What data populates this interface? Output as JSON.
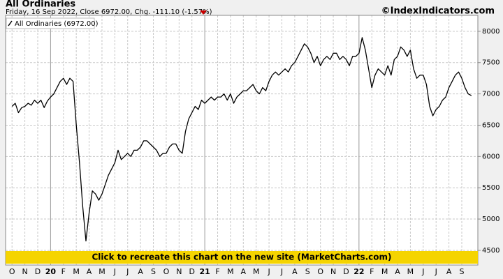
{
  "chart_data": {
    "type": "line",
    "title": "All Ordinaries",
    "subtitle": "Friday, 16 Sep 2022, Close 6972.00, Chg. -111.10 (-1.57%)",
    "credit": "©IndexIndicators.com",
    "banner": "Click to recreate this chart on the new site (MarketCharts.com)",
    "series": [
      {
        "name": "All Ordinaries (6972.00)",
        "color": "#000000",
        "values": [
          6800,
          6850,
          6700,
          6780,
          6800,
          6850,
          6820,
          6900,
          6850,
          6900,
          6780,
          6885,
          6950,
          7000,
          7100,
          7200,
          7250,
          7150,
          7250,
          7200,
          6500,
          5900,
          5200,
          4650,
          5100,
          5450,
          5400,
          5300,
          5400,
          5550,
          5700,
          5800,
          5900,
          6100,
          5950,
          6000,
          6050,
          6000,
          6100,
          6100,
          6150,
          6250,
          6250,
          6200,
          6150,
          6100,
          6000,
          6050,
          6050,
          6150,
          6200,
          6200,
          6100,
          6050,
          6400,
          6600,
          6700,
          6800,
          6750,
          6900,
          6850,
          6900,
          6950,
          6900,
          6950,
          6950,
          7000,
          6900,
          7000,
          6850,
          6950,
          7000,
          7050,
          7050,
          7100,
          7150,
          7050,
          7000,
          7100,
          7050,
          7200,
          7300,
          7350,
          7300,
          7350,
          7400,
          7350,
          7450,
          7500,
          7600,
          7700,
          7800,
          7750,
          7650,
          7500,
          7600,
          7450,
          7550,
          7600,
          7550,
          7650,
          7650,
          7550,
          7600,
          7550,
          7450,
          7600,
          7600,
          7650,
          7900,
          7700,
          7400,
          7100,
          7300,
          7400,
          7350,
          7300,
          7450,
          7300,
          7550,
          7600,
          7750,
          7700,
          7600,
          7700,
          7400,
          7250,
          7300,
          7300,
          7150,
          6800,
          6650,
          6750,
          6800,
          6900,
          6950,
          7100,
          7200,
          7300,
          7350,
          7250,
          7100,
          7000,
          6972
        ]
      }
    ],
    "xlim": [
      -2,
      145
    ],
    "xticks": [
      {
        "value": 0,
        "label": "O"
      },
      {
        "value": 4,
        "label": "N"
      },
      {
        "value": 8,
        "label": "D"
      },
      {
        "value": 12,
        "label": "20"
      },
      {
        "value": 16,
        "label": "F"
      },
      {
        "value": 20,
        "label": "M"
      },
      {
        "value": 24,
        "label": "A"
      },
      {
        "value": 28,
        "label": "M"
      },
      {
        "value": 32,
        "label": "J"
      },
      {
        "value": 36,
        "label": "J"
      },
      {
        "value": 40,
        "label": "A"
      },
      {
        "value": 44,
        "label": "S"
      },
      {
        "value": 48,
        "label": "O"
      },
      {
        "value": 52,
        "label": "N"
      },
      {
        "value": 56,
        "label": "D"
      },
      {
        "value": 60,
        "label": "21"
      },
      {
        "value": 64,
        "label": "F"
      },
      {
        "value": 68,
        "label": "M"
      },
      {
        "value": 72,
        "label": "A"
      },
      {
        "value": 76,
        "label": "M"
      },
      {
        "value": 80,
        "label": "J"
      },
      {
        "value": 84,
        "label": "J"
      },
      {
        "value": 88,
        "label": "A"
      },
      {
        "value": 92,
        "label": "S"
      },
      {
        "value": 96,
        "label": "O"
      },
      {
        "value": 100,
        "label": "N"
      },
      {
        "value": 104,
        "label": "D"
      },
      {
        "value": 108,
        "label": "22"
      },
      {
        "value": 112,
        "label": "F"
      },
      {
        "value": 116,
        "label": "M"
      },
      {
        "value": 120,
        "label": "A"
      },
      {
        "value": 124,
        "label": "M"
      },
      {
        "value": 128,
        "label": "J"
      },
      {
        "value": 132,
        "label": "J"
      },
      {
        "value": 136,
        "label": "A"
      },
      {
        "value": 140,
        "label": "S"
      }
    ],
    "year_ticks": [
      12,
      60,
      108
    ],
    "ylim": [
      4265,
      8255
    ],
    "yticks": [
      4500,
      5000,
      5500,
      6000,
      6500,
      7000,
      7500,
      8000
    ],
    "grid": true
  }
}
